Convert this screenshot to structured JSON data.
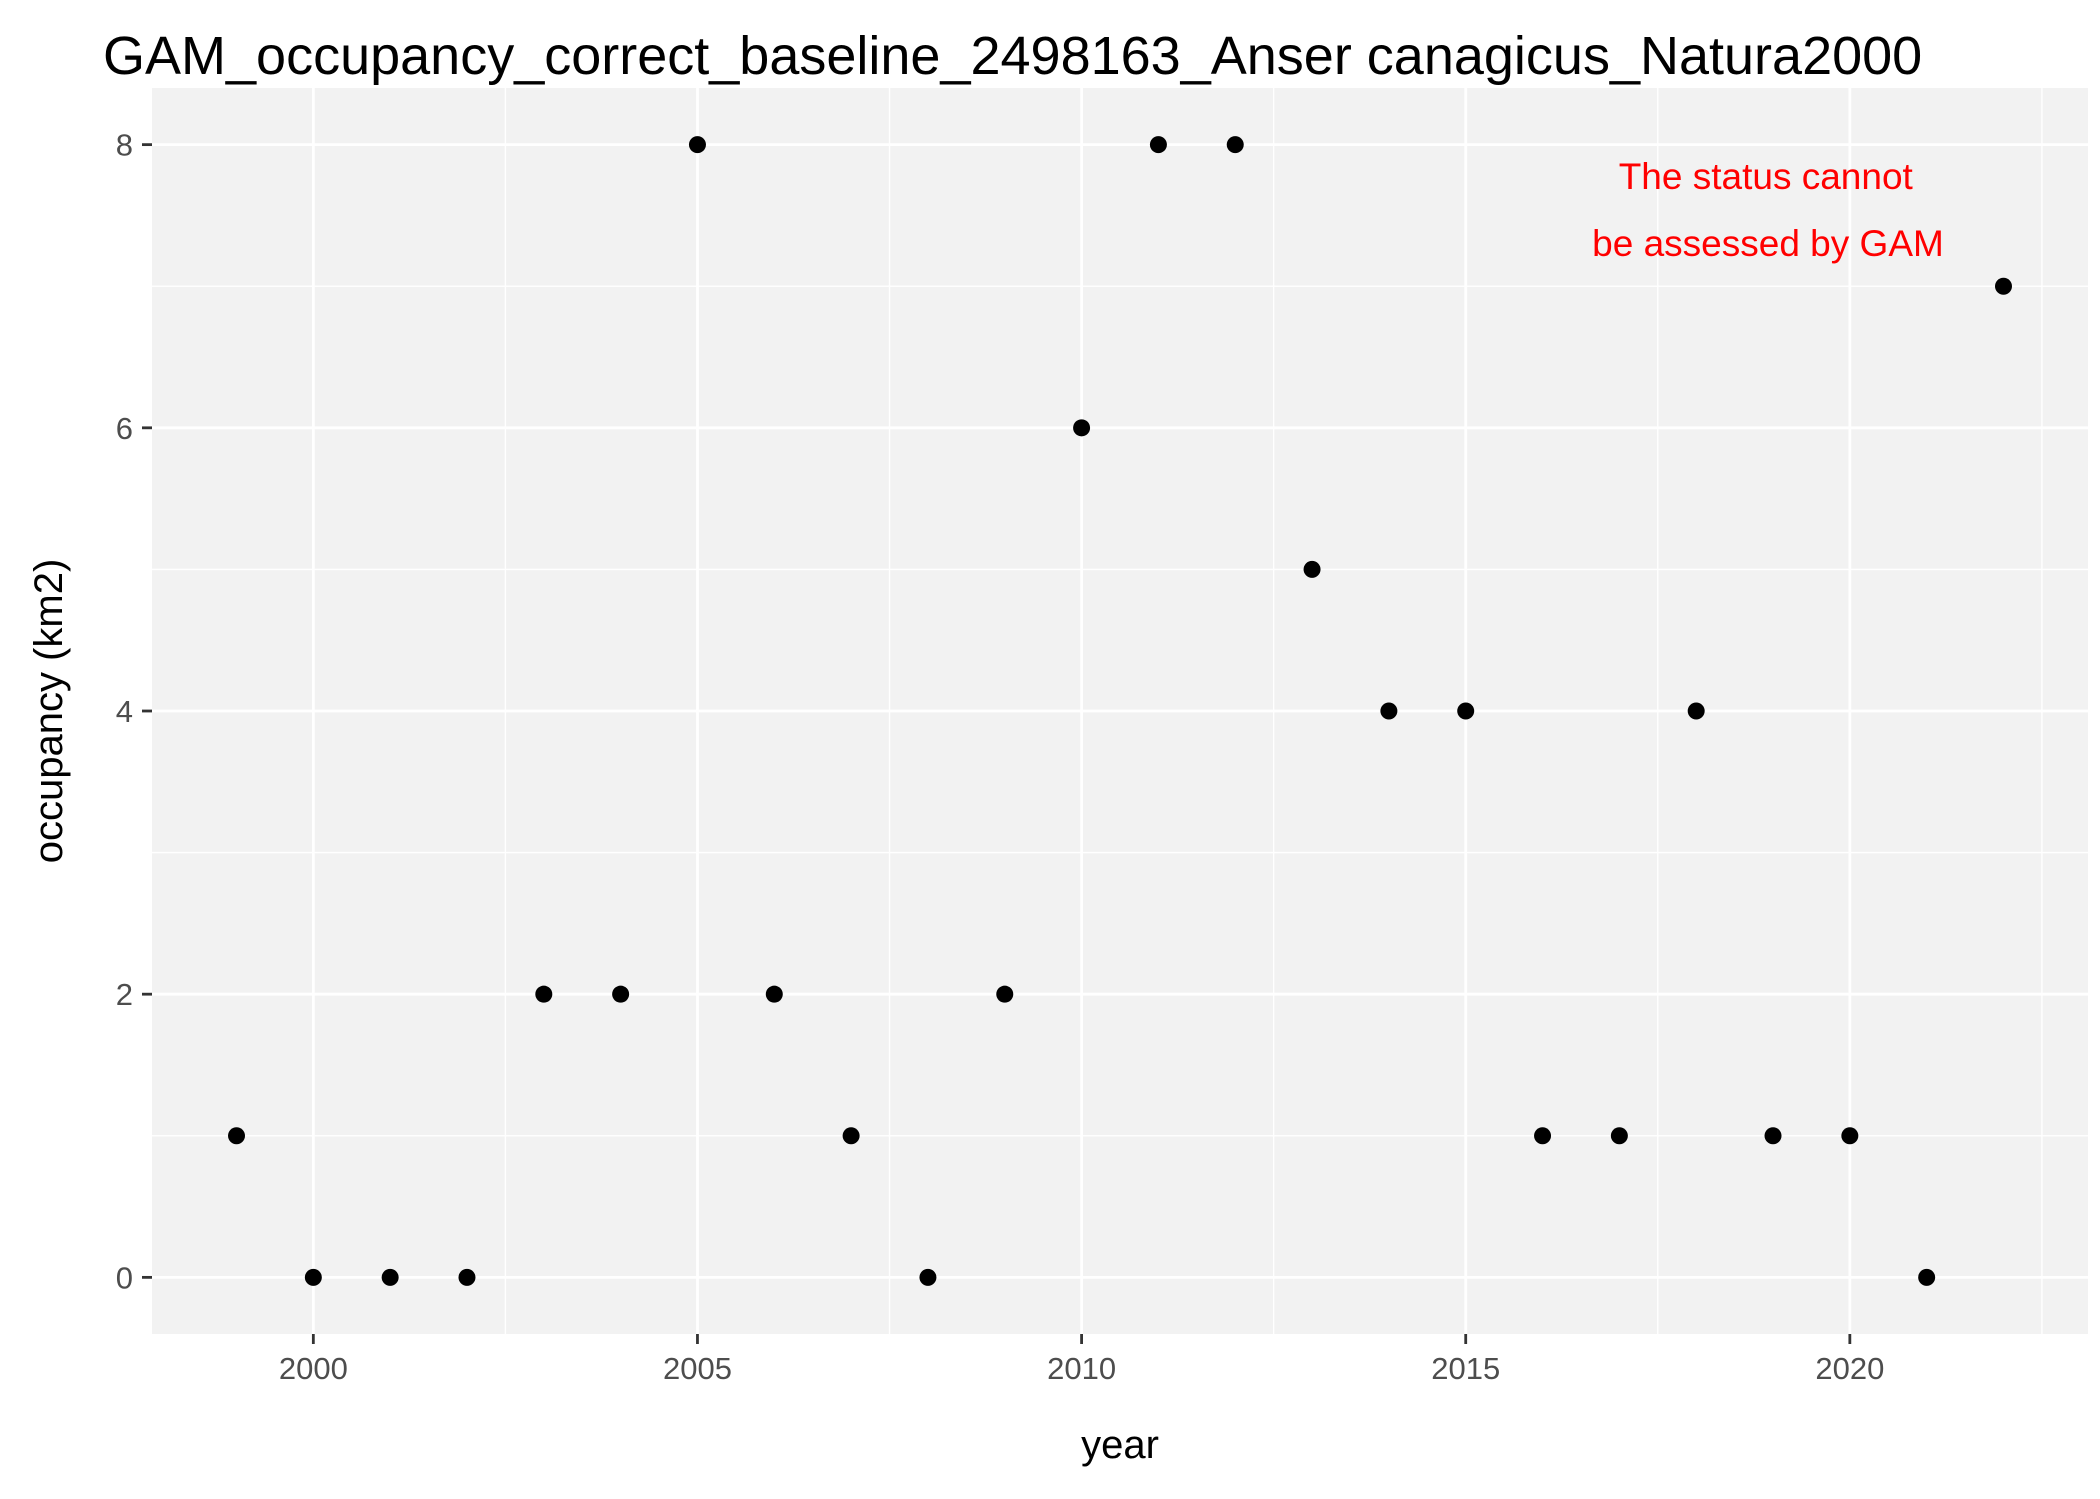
{
  "chart_data": {
    "type": "scatter",
    "title": "GAM_occupancy_correct_baseline_2498163_Anser canagicus_Natura2000",
    "xlabel": "year",
    "ylabel": "occupancy (km2)",
    "xlim": [
      1997.9,
      2023.1
    ],
    "ylim": [
      -0.4,
      8.4
    ],
    "x_ticks": [
      2000,
      2005,
      2010,
      2015,
      2020
    ],
    "x_tick_labels": [
      "2000",
      "2005",
      "2010",
      "2015",
      "2020"
    ],
    "x_minor_ticks": [
      2002.5,
      2007.5,
      2012.5,
      2017.5,
      2022.5
    ],
    "y_ticks": [
      0,
      2,
      4,
      6,
      8
    ],
    "y_tick_labels": [
      "0",
      "2",
      "4",
      "6",
      "8"
    ],
    "y_minor_ticks": [
      1,
      3,
      5,
      7
    ],
    "grid": true,
    "legend": "none",
    "panel_background": "#f2f2f2",
    "grid_color": "#ffffff",
    "point_color": "#000000",
    "points": [
      {
        "x": 1999,
        "y": 1
      },
      {
        "x": 2000,
        "y": 0
      },
      {
        "x": 2001,
        "y": 0
      },
      {
        "x": 2002,
        "y": 0
      },
      {
        "x": 2003,
        "y": 2
      },
      {
        "x": 2004,
        "y": 2
      },
      {
        "x": 2005,
        "y": 8
      },
      {
        "x": 2006,
        "y": 2
      },
      {
        "x": 2007,
        "y": 1
      },
      {
        "x": 2008,
        "y": 0
      },
      {
        "x": 2009,
        "y": 2
      },
      {
        "x": 2010,
        "y": 6
      },
      {
        "x": 2011,
        "y": 8
      },
      {
        "x": 2012,
        "y": 8
      },
      {
        "x": 2013,
        "y": 5
      },
      {
        "x": 2014,
        "y": 4
      },
      {
        "x": 2015,
        "y": 4
      },
      {
        "x": 2016,
        "y": 1
      },
      {
        "x": 2017,
        "y": 1
      },
      {
        "x": 2018,
        "y": 4
      },
      {
        "x": 2019,
        "y": 1
      },
      {
        "x": 2020,
        "y": 1
      },
      {
        "x": 2021,
        "y": 0
      },
      {
        "x": 2022,
        "y": 7
      }
    ],
    "annotation": {
      "lines": [
        "The status cannot",
        "be assessed by GAM"
      ],
      "color": "#ff0000"
    }
  }
}
